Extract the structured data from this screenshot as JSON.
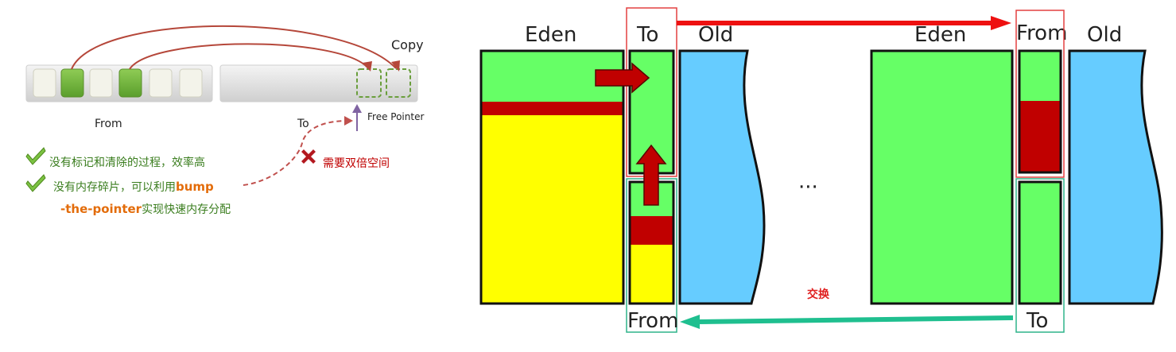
{
  "left": {
    "copy_label": "Copy",
    "from_label": "From",
    "to_label": "To",
    "free_pointer_label": "Free Pointer",
    "pro_1": "没有标记和清除的过程，效率高",
    "pro_2_prefix": "没有内存碎片，可以利用",
    "pro_2_bold": "bump",
    "pro_2_line2_bold": "-the-pointer",
    "pro_2_line2_rest": "实现快速内存分配",
    "con_1": "需要双倍空间",
    "colors": {
      "used_block": "#6db33f",
      "empty_block": "#f3f3ea",
      "arc": "#b5473a",
      "ok_icon": "#7cc242",
      "bad_icon": "#b3181f"
    }
  },
  "right": {
    "left_heap": {
      "eden_label": "Eden",
      "to_label": "To",
      "old_label": "Old",
      "from_label": "From"
    },
    "ellipsis": "···",
    "right_heap": {
      "eden_label": "Eden",
      "from_label": "From",
      "old_label": "Old",
      "to_label": "To"
    },
    "swap_label": "交换",
    "colors": {
      "live": "#66ff66",
      "dead": "#c00000",
      "yellow": "#ffff00",
      "old": "#66ccff",
      "top_arrow": "#ee1111",
      "bottom_arrow": "#1fbf8f",
      "to_frame": "#e34040",
      "from_frame": "#2fb48a"
    }
  }
}
